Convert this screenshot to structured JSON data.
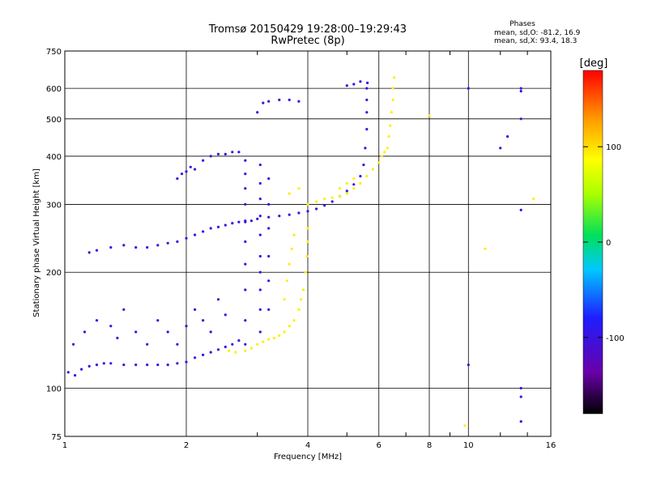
{
  "chart_data": {
    "type": "scatter",
    "title": "Tromsø 20150429 19:28:00–19:29:43",
    "subtitle": "RwPretec (8p)",
    "xlabel": "Frequency [MHz]",
    "ylabel": "Stationary phase Virtual Height [km]",
    "x_scale": "log",
    "y_scale": "log",
    "xlim": [
      1,
      16
    ],
    "ylim": [
      75,
      750
    ],
    "x_ticks": [
      1,
      2,
      4,
      6,
      8,
      10,
      16
    ],
    "x_tick_labels": [
      "1",
      "2",
      "4",
      "6",
      "8",
      "10",
      "16"
    ],
    "x_minor_ticks": [
      3,
      5,
      7,
      9,
      12,
      14
    ],
    "y_ticks": [
      75,
      100,
      200,
      300,
      400,
      500,
      600,
      750
    ],
    "y_tick_labels": [
      "75",
      "100",
      "200",
      "300",
      "400",
      "500",
      "600",
      "750"
    ],
    "grid": true,
    "stats_header": "Phases",
    "stats_lines": [
      "mean, sd,O: -81.2, 16.9",
      "mean, sd,X:  93.4, 18.3"
    ],
    "colorbar": {
      "label": "[deg]",
      "range": [
        -180,
        180
      ],
      "ticks": [
        100,
        0,
        -100
      ],
      "tick_labels": [
        "100",
        "0",
        "-100"
      ],
      "colormap": "rainbow: black (-180) → purple → blue → cyan → green → yellow → orange → red (180)"
    },
    "series": [
      {
        "mode": "O",
        "phase": -100,
        "points": [
          [
            1.02,
            110
          ],
          [
            1.06,
            108
          ],
          [
            1.1,
            112
          ],
          [
            1.15,
            114
          ],
          [
            1.2,
            115
          ],
          [
            1.25,
            116
          ],
          [
            1.3,
            116
          ],
          [
            1.4,
            115
          ],
          [
            1.5,
            115
          ],
          [
            1.6,
            115
          ],
          [
            1.7,
            115
          ],
          [
            1.8,
            115
          ],
          [
            1.9,
            116
          ],
          [
            2.0,
            117
          ],
          [
            2.1,
            120
          ],
          [
            2.2,
            122
          ],
          [
            2.3,
            124
          ],
          [
            2.4,
            126
          ],
          [
            2.5,
            128
          ],
          [
            2.6,
            130
          ],
          [
            2.7,
            133
          ],
          [
            1.05,
            130
          ],
          [
            1.12,
            140
          ],
          [
            1.2,
            150
          ],
          [
            1.3,
            145
          ],
          [
            1.35,
            135
          ],
          [
            1.4,
            160
          ],
          [
            1.5,
            140
          ],
          [
            1.6,
            130
          ],
          [
            1.7,
            150
          ],
          [
            1.8,
            140
          ],
          [
            1.9,
            130
          ],
          [
            2.0,
            145
          ],
          [
            2.1,
            160
          ],
          [
            2.2,
            150
          ],
          [
            2.3,
            140
          ],
          [
            2.4,
            170
          ],
          [
            2.5,
            155
          ],
          [
            1.15,
            225
          ],
          [
            1.2,
            228
          ],
          [
            1.3,
            232
          ],
          [
            1.4,
            235
          ],
          [
            1.5,
            232
          ],
          [
            1.6,
            232
          ],
          [
            1.7,
            235
          ],
          [
            1.8,
            238
          ],
          [
            1.9,
            240
          ],
          [
            2.0,
            245
          ],
          [
            2.1,
            250
          ],
          [
            2.2,
            255
          ],
          [
            2.3,
            260
          ],
          [
            2.4,
            262
          ],
          [
            2.5,
            265
          ],
          [
            2.6,
            268
          ],
          [
            2.7,
            270
          ],
          [
            2.8,
            272
          ],
          [
            2.9,
            272
          ],
          [
            1.9,
            350
          ],
          [
            1.95,
            360
          ],
          [
            2.0,
            365
          ],
          [
            2.05,
            375
          ],
          [
            2.1,
            370
          ],
          [
            2.2,
            390
          ],
          [
            2.3,
            400
          ],
          [
            2.4,
            405
          ],
          [
            2.5,
            405
          ],
          [
            2.6,
            410
          ],
          [
            2.7,
            410
          ],
          [
            2.8,
            130
          ],
          [
            2.8,
            150
          ],
          [
            2.8,
            180
          ],
          [
            2.8,
            210
          ],
          [
            2.8,
            240
          ],
          [
            2.8,
            270
          ],
          [
            2.8,
            300
          ],
          [
            2.8,
            330
          ],
          [
            2.8,
            360
          ],
          [
            2.8,
            390
          ],
          [
            3.05,
            140
          ],
          [
            3.05,
            160
          ],
          [
            3.05,
            180
          ],
          [
            3.05,
            200
          ],
          [
            3.05,
            220
          ],
          [
            3.05,
            250
          ],
          [
            3.05,
            280
          ],
          [
            3.05,
            310
          ],
          [
            3.05,
            340
          ],
          [
            3.05,
            380
          ],
          [
            3.2,
            160
          ],
          [
            3.2,
            190
          ],
          [
            3.2,
            220
          ],
          [
            3.2,
            260
          ],
          [
            3.2,
            300
          ],
          [
            3.2,
            350
          ],
          [
            3.0,
            275
          ],
          [
            3.2,
            278
          ],
          [
            3.4,
            280
          ],
          [
            3.6,
            282
          ],
          [
            3.8,
            285
          ],
          [
            4.0,
            288
          ],
          [
            4.2,
            292
          ],
          [
            4.4,
            298
          ],
          [
            4.6,
            305
          ],
          [
            4.8,
            315
          ],
          [
            5.0,
            325
          ],
          [
            5.2,
            338
          ],
          [
            5.4,
            355
          ],
          [
            5.5,
            380
          ],
          [
            5.55,
            420
          ],
          [
            5.6,
            470
          ],
          [
            5.6,
            520
          ],
          [
            5.6,
            560
          ],
          [
            5.6,
            600
          ],
          [
            5.62,
            620
          ],
          [
            5.0,
            610
          ],
          [
            5.2,
            615
          ],
          [
            5.4,
            625
          ],
          [
            3.0,
            520
          ],
          [
            3.1,
            550
          ],
          [
            3.2,
            555
          ],
          [
            3.4,
            560
          ],
          [
            3.6,
            560
          ],
          [
            3.8,
            555
          ],
          [
            12.0,
            420
          ],
          [
            12.5,
            450
          ],
          [
            13.5,
            500
          ],
          [
            13.5,
            590
          ],
          [
            13.5,
            600
          ],
          [
            13.5,
            290
          ],
          [
            13.5,
            100
          ],
          [
            13.5,
            95
          ],
          [
            13.5,
            82
          ],
          [
            10.0,
            600
          ],
          [
            10.0,
            115
          ]
        ]
      },
      {
        "mode": "X",
        "phase": 93,
        "points": [
          [
            2.55,
            125
          ],
          [
            2.65,
            124
          ],
          [
            2.8,
            125
          ],
          [
            2.9,
            127
          ],
          [
            3.0,
            130
          ],
          [
            3.1,
            132
          ],
          [
            3.2,
            134
          ],
          [
            3.3,
            135
          ],
          [
            3.4,
            137
          ],
          [
            3.5,
            140
          ],
          [
            3.6,
            145
          ],
          [
            3.7,
            150
          ],
          [
            3.8,
            160
          ],
          [
            3.85,
            170
          ],
          [
            3.9,
            180
          ],
          [
            3.95,
            200
          ],
          [
            3.98,
            220
          ],
          [
            4.0,
            240
          ],
          [
            4.0,
            260
          ],
          [
            3.5,
            170
          ],
          [
            3.55,
            190
          ],
          [
            3.6,
            210
          ],
          [
            3.65,
            230
          ],
          [
            3.7,
            250
          ],
          [
            4.0,
            300
          ],
          [
            4.2,
            305
          ],
          [
            4.4,
            310
          ],
          [
            4.6,
            312
          ],
          [
            4.8,
            315
          ],
          [
            5.0,
            320
          ],
          [
            5.2,
            330
          ],
          [
            5.4,
            340
          ],
          [
            5.6,
            355
          ],
          [
            5.8,
            370
          ],
          [
            6.0,
            385
          ],
          [
            6.1,
            400
          ],
          [
            6.2,
            410
          ],
          [
            6.3,
            420
          ],
          [
            6.35,
            450
          ],
          [
            6.4,
            480
          ],
          [
            6.45,
            520
          ],
          [
            6.5,
            560
          ],
          [
            6.5,
            600
          ],
          [
            6.55,
            640
          ],
          [
            4.8,
            330
          ],
          [
            5.0,
            340
          ],
          [
            5.2,
            350
          ],
          [
            3.6,
            320
          ],
          [
            3.8,
            330
          ],
          [
            8.0,
            510
          ],
          [
            9.8,
            80
          ],
          [
            14.5,
            310
          ],
          [
            11.0,
            230
          ]
        ]
      }
    ]
  }
}
